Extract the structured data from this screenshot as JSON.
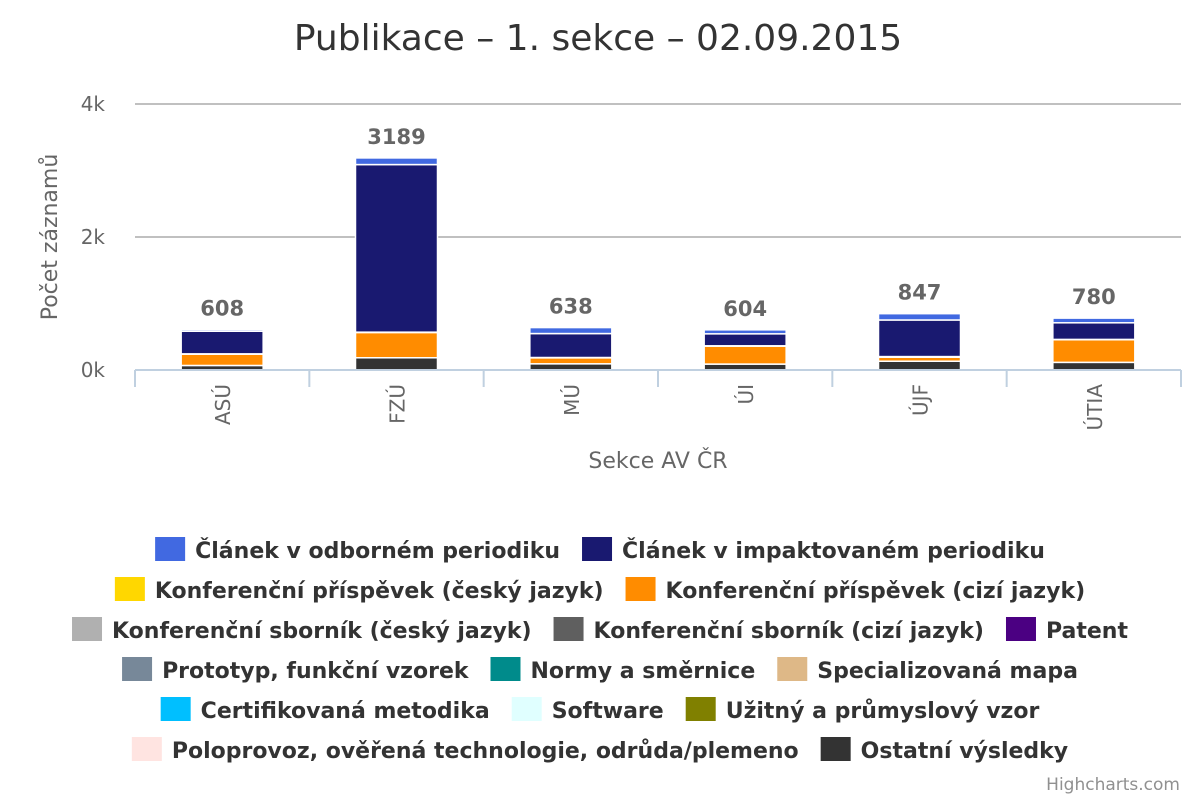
{
  "chart_data": {
    "type": "bar",
    "stacked": true,
    "title": "Publikace – 1. sekce – 02.09.2015",
    "xlabel": "Sekce AV ČR",
    "ylabel": "Počet záznamů",
    "ylim": [
      0,
      4000
    ],
    "yticks": [
      {
        "value": 0,
        "label": "0k"
      },
      {
        "value": 2000,
        "label": "2k"
      },
      {
        "value": 4000,
        "label": "4k"
      }
    ],
    "grid": true,
    "legend_position": "bottom",
    "categories": [
      "ASÚ",
      "FZÚ",
      "MÚ",
      "ÚI",
      "ÚJF",
      "ÚTIA"
    ],
    "totals": [
      608,
      3189,
      638,
      604,
      847,
      780
    ],
    "series": [
      {
        "name": "Článek v odborném periodiku",
        "color": "#4169e1",
        "values": [
          25,
          100,
          90,
          60,
          95,
          70
        ]
      },
      {
        "name": "Článek v impaktovaném periodiku",
        "color": "#191970",
        "values": [
          340,
          2520,
          360,
          180,
          550,
          250
        ]
      },
      {
        "name": "Konferenční příspěvek (český jazyk)",
        "color": "#ffd700",
        "values": [
          5,
          5,
          5,
          5,
          10,
          5
        ]
      },
      {
        "name": "Konferenční příspěvek (cizí jazyk)",
        "color": "#ff8c00",
        "values": [
          170,
          380,
          90,
          270,
          60,
          340
        ]
      },
      {
        "name": "Konferenční sborník (český jazyk)",
        "color": "#b0b0b0",
        "values": [
          0,
          0,
          0,
          0,
          0,
          0
        ]
      },
      {
        "name": "Konferenční sborník (cizí jazyk)",
        "color": "#5f5f5f",
        "values": [
          0,
          0,
          0,
          0,
          0,
          0
        ]
      },
      {
        "name": "Patent",
        "color": "#4b0082",
        "values": [
          0,
          0,
          0,
          0,
          0,
          0
        ]
      },
      {
        "name": "Prototyp, funkční vzorek",
        "color": "#778899",
        "values": [
          0,
          0,
          0,
          0,
          0,
          0
        ]
      },
      {
        "name": "Normy a směrnice",
        "color": "#008b8b",
        "values": [
          0,
          0,
          0,
          0,
          0,
          0
        ]
      },
      {
        "name": "Specializovaná mapa",
        "color": "#deb887",
        "values": [
          0,
          0,
          0,
          0,
          0,
          0
        ]
      },
      {
        "name": "Certifikovaná metodika",
        "color": "#00bfff",
        "values": [
          0,
          0,
          0,
          0,
          0,
          0
        ]
      },
      {
        "name": "Software",
        "color": "#e0ffff",
        "values": [
          0,
          0,
          0,
          0,
          0,
          0
        ]
      },
      {
        "name": "Užitný a průmyslový vzor",
        "color": "#808000",
        "values": [
          0,
          0,
          0,
          0,
          0,
          0
        ]
      },
      {
        "name": "Poloprovoz, ověřená technologie, odrůda/plemeno",
        "color": "#ffe4e1",
        "values": [
          0,
          0,
          0,
          0,
          0,
          0
        ]
      },
      {
        "name": "Ostatní výsledky",
        "color": "#333333",
        "values": [
          68,
          184,
          93,
          89,
          132,
          115
        ]
      }
    ]
  },
  "credits": "Highcharts.com"
}
